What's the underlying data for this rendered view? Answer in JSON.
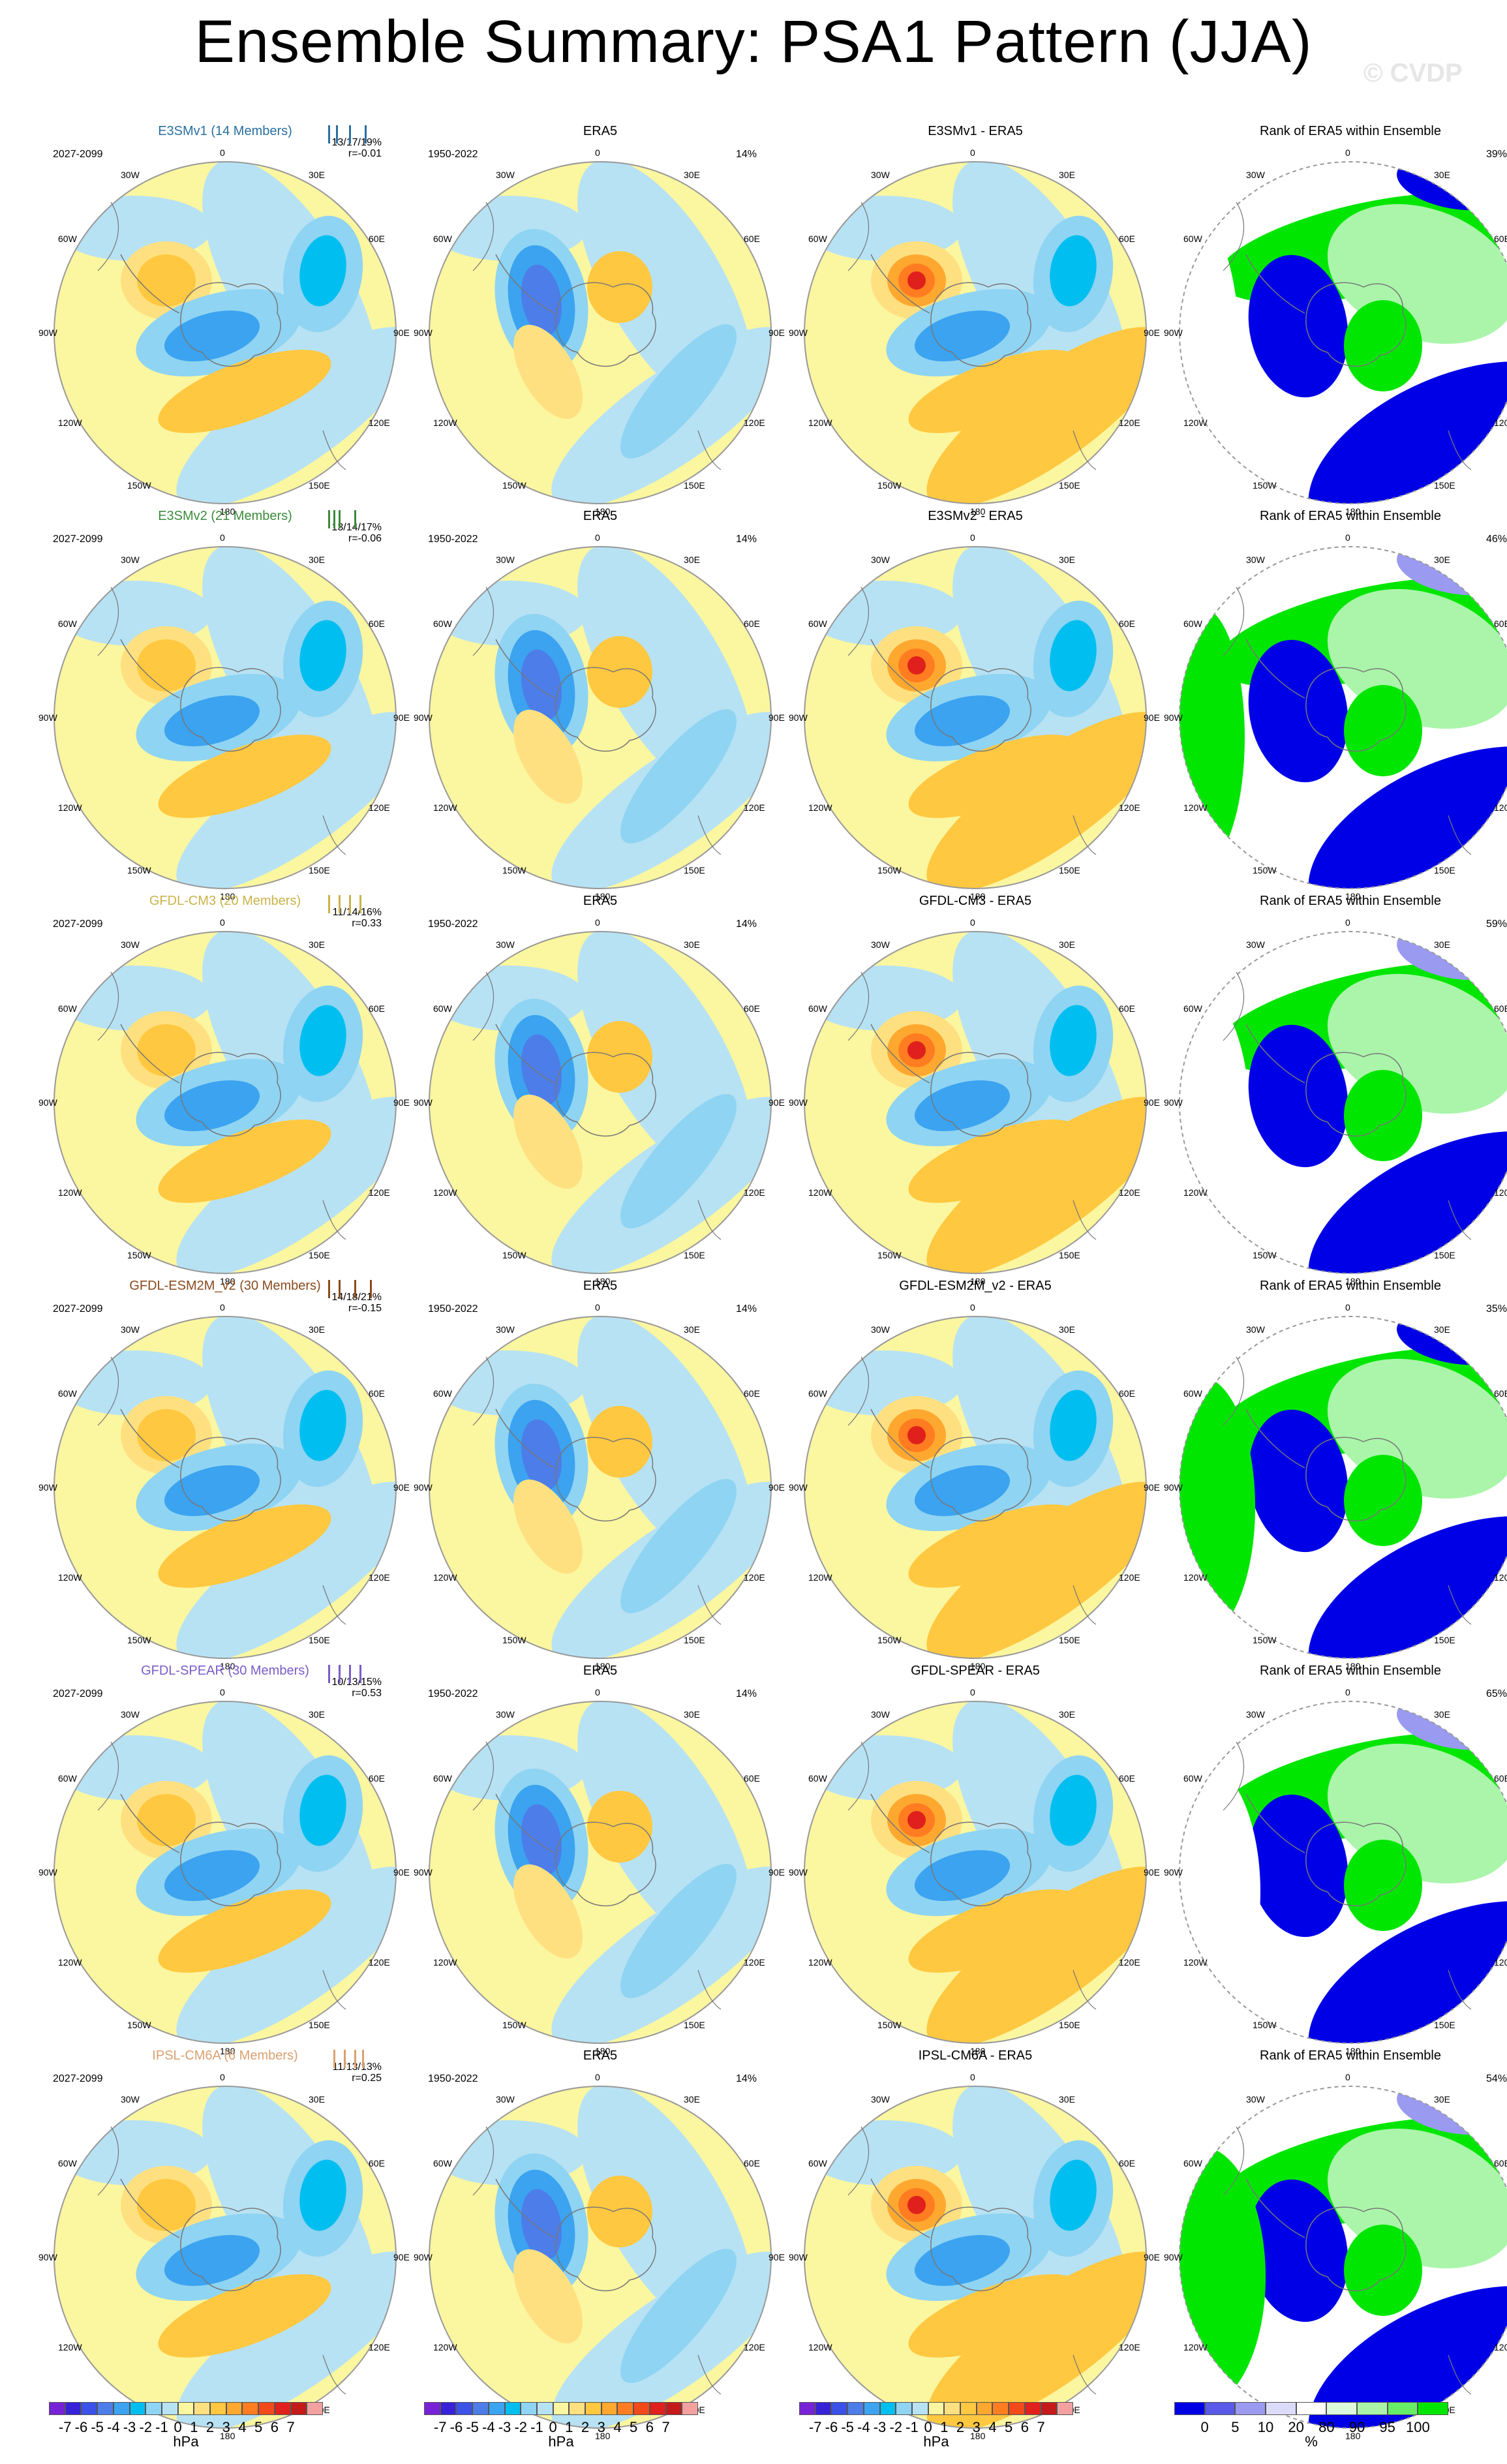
{
  "header": {
    "title": "Ensemble Summary: PSA1 Pattern (JJA)",
    "watermark": "© CVDP"
  },
  "chart_data": {
    "type": "heatmap",
    "title": "Ensemble Summary: PSA1 Pattern (JJA)",
    "map_longitude_labels": [
      "0",
      "30E",
      "60E",
      "90E",
      "120E",
      "150E",
      "180",
      "150W",
      "120W",
      "90W",
      "60W",
      "30W"
    ],
    "rows": [
      {
        "ensemble_title": "E3SMv1 (14 Members)",
        "color": "#2a6fa1",
        "period": "2027-2099",
        "stats": "13/17/19%",
        "r": "r=-0.01",
        "diff_title": "E3SMv1 - ERA5",
        "rank_pct": "39%",
        "bars": [
          0.1,
          0.25,
          0.5,
          0.8
        ]
      },
      {
        "ensemble_title": "E3SMv2 (21 Members)",
        "color": "#3c8a3c",
        "period": "2027-2099",
        "stats": "13/14/17%",
        "r": "r=-0.06",
        "diff_title": "E3SMv2 - ERA5",
        "rank_pct": "46%",
        "bars": [
          0.1,
          0.2,
          0.3,
          0.6
        ]
      },
      {
        "ensemble_title": "GFDL-CM3 (20 Members)",
        "color": "#c9b34a",
        "period": "2027-2099",
        "stats": "11/14/16%",
        "r": "r=0.33",
        "diff_title": "GFDL-CM3 - ERA5",
        "rank_pct": "59%",
        "bars": [
          0.1,
          0.3,
          0.5,
          0.7
        ]
      },
      {
        "ensemble_title": "GFDL-ESM2M_v2 (30 Members)",
        "color": "#8a4a1c",
        "period": "2027-2099",
        "stats": "14/18/21%",
        "r": "r=-0.15",
        "diff_title": "GFDL-ESM2M_v2 - ERA5",
        "rank_pct": "35%",
        "bars": [
          0.1,
          0.3,
          0.6,
          0.9
        ]
      },
      {
        "ensemble_title": "GFDL-SPEAR (30 Members)",
        "color": "#7b5cc8",
        "period": "2027-2099",
        "stats": "10/13/15%",
        "r": "r=0.53",
        "diff_title": "GFDL-SPEAR - ERA5",
        "rank_pct": "65%",
        "bars": [
          0.1,
          0.3,
          0.5,
          0.7
        ]
      },
      {
        "ensemble_title": "IPSL-CM6A (6 Members)",
        "color": "#d9a070",
        "period": "2027-2099",
        "stats": "11/13/13%",
        "r": "r=0.25",
        "diff_title": "IPSL-CM6A - ERA5",
        "rank_pct": "54%",
        "bars": [
          0.2,
          0.4,
          0.6,
          0.75
        ]
      }
    ],
    "obs": {
      "title": "ERA5",
      "period": "1950-2022",
      "pct": "14%"
    },
    "rank_title": "Rank of ERA5 within Ensemble",
    "hpa_colorbar": {
      "colors": [
        "#7722d6",
        "#3722d8",
        "#3a52e8",
        "#4d7de8",
        "#3ba3f0",
        "#00bff0",
        "#8fd4f2",
        "#b7e2f4",
        "#fbf6a0",
        "#ffe080",
        "#ffc840",
        "#ffa830",
        "#ff7d20",
        "#f24a1a",
        "#e0201c",
        "#c41a1a",
        "#f2a0a0"
      ],
      "ticks": [
        "-7",
        "-6",
        "-5",
        "-4",
        "-3",
        "-2",
        "-1",
        "0",
        "1",
        "2",
        "3",
        "4",
        "5",
        "6",
        "7"
      ],
      "unit": "hPa"
    },
    "rank_colorbar": {
      "colors": [
        "#0000e6",
        "#5a5ae8",
        "#9a9af0",
        "#dcdcfa",
        "#ffffff",
        "#dcfadc",
        "#aaf5aa",
        "#66ee66",
        "#00e600"
      ],
      "ticks": [
        "0",
        "5",
        "10",
        "20",
        "80",
        "90",
        "95",
        "100"
      ],
      "unit": "%"
    },
    "colors": {
      "land_outline": "#777777",
      "circle": "#999999"
    }
  }
}
